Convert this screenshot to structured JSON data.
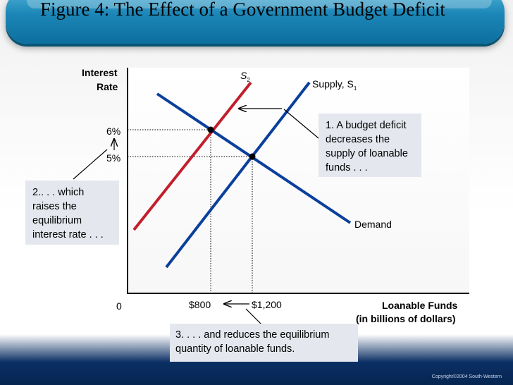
{
  "title": "Figure 4: The Effect of a Government Budget Deficit",
  "chart_data": {
    "type": "line",
    "ylabel_line1": "Interest",
    "ylabel_line2": "Rate",
    "xlabel_line1": "Loanable Funds",
    "xlabel_line2": "(in billions of dollars)",
    "origin_label": "0",
    "x_ticks": [
      "$800",
      "$1,200"
    ],
    "y_ticks": [
      "6%",
      "5%"
    ],
    "equilibria": [
      {
        "quantity": 1200,
        "rate": 5
      },
      {
        "quantity": 800,
        "rate": 6
      }
    ],
    "series": [
      {
        "name": "Demand",
        "label": "Demand",
        "color": "#0a3f9c"
      },
      {
        "name": "Supply, S1",
        "label_main": "Supply, S",
        "label_sub": "1",
        "color": "#0a3f9c"
      },
      {
        "name": "S2",
        "label_main": "S",
        "label_sub": "2",
        "color": "#c21f2c"
      }
    ],
    "annotations": {
      "note1": [
        "1. A budget deficit",
        "decreases the",
        "supply of loanable",
        "funds . . ."
      ],
      "note2": [
        "2.. . . which",
        "raises the",
        "equilibrium",
        "interest rate . . ."
      ],
      "note3": [
        "3. . . . and reduces the equilibrium",
        "quantity of loanable funds."
      ]
    }
  },
  "footer": {
    "copyright": "Copyright©2004  South-Western"
  }
}
